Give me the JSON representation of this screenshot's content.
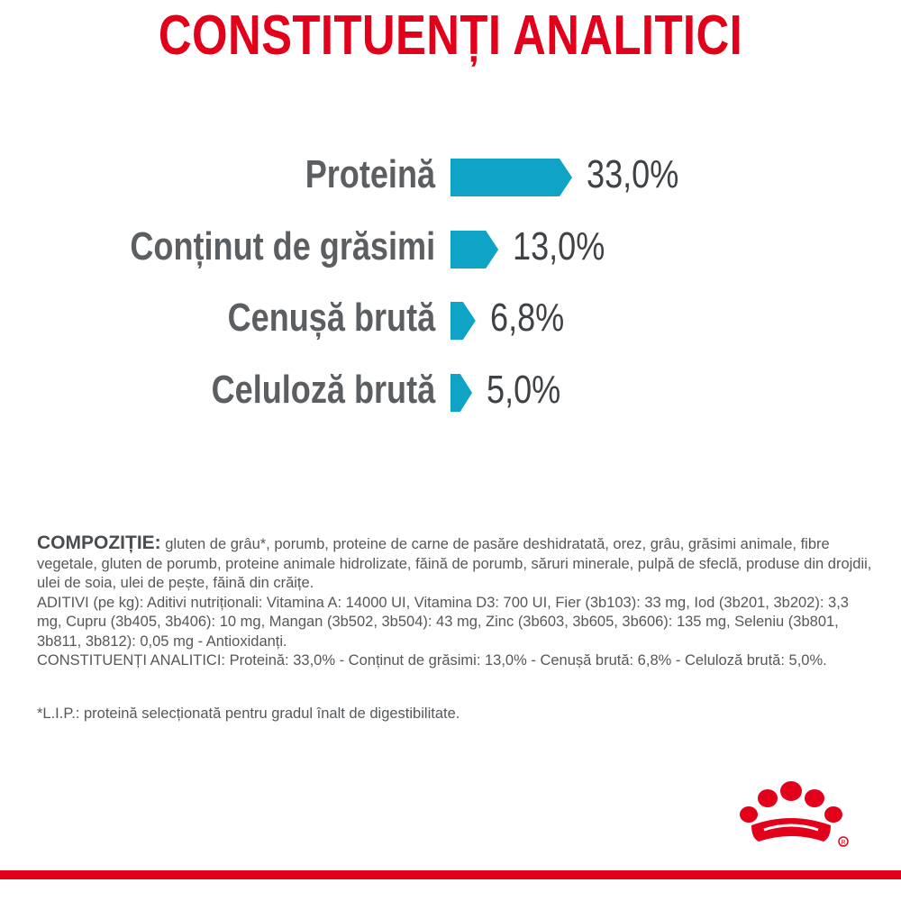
{
  "title": "CONSTITUENȚI ANALITICI",
  "chart_data": {
    "type": "bar",
    "orientation": "horizontal",
    "categories": [
      "Proteină",
      "Conținut de grăsimi",
      "Cenușă brută",
      "Celuloză brută"
    ],
    "values": [
      33.0,
      13.0,
      6.8,
      5.0
    ],
    "value_labels": [
      "33,0%",
      "13,0%",
      "6,8%",
      "5,0%"
    ],
    "unit": "%",
    "grid": false,
    "legend": "none",
    "bar_color": "#0fa3c6"
  },
  "composition": {
    "lead": "COMPOZIȚIE:",
    "ingredients": " gluten de grâu*, porumb, proteine de carne de pasăre deshidratată, orez, grâu, grăsimi animale, fibre vegetale, gluten de porumb, proteine animale hidrolizate, făină de porumb, săruri minerale, pulpă de sfeclă, produse din drojdii, ulei de soia, ulei de pește, făină din crăițe.",
    "additives": "ADITIVI (pe kg): Aditivi nutriționali: Vitamina A: 14000 UI, Vitamina D3: 700 UI, Fier (3b103): 33 mg, Iod (3b201, 3b202): 3,3 mg, Cupru (3b405, 3b406): 10 mg, Mangan (3b502, 3b504): 43 mg, Zinc (3b603, 3b605, 3b606): 135 mg, Seleniu (3b801, 3b811, 3b812): 0,05 mg - Antioxidanți.",
    "constituents": "CONSTITUENȚI ANALITICI: Proteină: 33,0% - Conținut de grăsimi: 13,0% - Cenușă brută: 6,8% - Celuloză brută: 5,0%."
  },
  "footnote": "*L.I.P.: proteină selecționată pentru gradul înalt de digestibilitate.",
  "colors": {
    "brand_red": "#e2001a",
    "bar_blue": "#0fa3c6",
    "label_gray": "#5c5f62"
  },
  "logo": {
    "icon": "royal-canin-crown-icon"
  }
}
